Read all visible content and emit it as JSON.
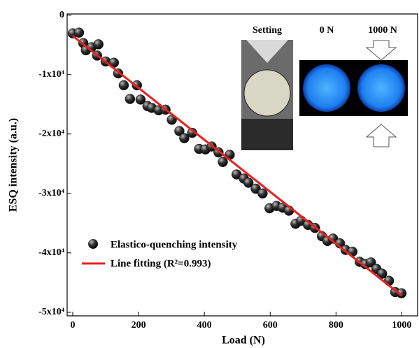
{
  "chart_data": {
    "type": "scatter",
    "x_label": "Load (N)",
    "y_label": "ESQ intensity (a.u.)",
    "xlim": [
      -17,
      1048
    ],
    "ylim": [
      -50600,
      200
    ],
    "xticks": [
      0,
      200,
      400,
      600,
      800,
      1000
    ],
    "yticks": [
      0,
      {
        "value": -10000,
        "label": "-1x10⁴"
      },
      {
        "value": -20000,
        "label": "-2x10⁴"
      },
      {
        "value": -30000,
        "label": "-3x10⁴"
      },
      {
        "value": -40000,
        "label": "-4x10⁴"
      },
      {
        "value": -50000,
        "label": "-5x10⁴"
      }
    ],
    "series": [
      {
        "name": "Elastico-quenching intensity",
        "color": "#111111",
        "x": [
          0,
          19,
          32,
          40,
          57,
          78,
          74,
          100,
          125,
          138,
          155,
          174,
          195,
          206,
          227,
          240,
          261,
          282,
          301,
          324,
          339,
          363,
          384,
          403,
          422,
          443,
          456,
          477,
          498,
          520,
          534,
          556,
          577,
          598,
          619,
          638,
          657,
          677,
          694,
          715,
          736,
          757,
          774,
          791,
          812,
          829,
          850,
          872,
          889,
          906,
          923,
          940,
          961,
          980,
          999
        ],
        "values": [
          -3060,
          -2940,
          -4700,
          -5900,
          -5400,
          -4900,
          -6800,
          -7800,
          -8000,
          -9800,
          -11800,
          -14100,
          -11800,
          -14200,
          -15300,
          -15600,
          -16000,
          -15900,
          -17600,
          -19500,
          -20700,
          -19800,
          -22500,
          -22600,
          -22100,
          -23100,
          -24700,
          -23500,
          -26800,
          -27500,
          -28200,
          -29200,
          -30000,
          -32500,
          -32100,
          -32400,
          -32900,
          -35100,
          -34600,
          -35300,
          -35800,
          -37200,
          -38000,
          -37600,
          -38400,
          -39500,
          -39800,
          -41500,
          -41900,
          -41600,
          -42700,
          -43500,
          -44700,
          -46600,
          -46800
        ]
      },
      {
        "name": "Line fitting (R²=0.993)",
        "color": "#e8201f",
        "line": true,
        "x": [
          0,
          1000
        ],
        "values": [
          -3500,
          -47200
        ]
      }
    ],
    "annotations": [
      "Setting",
      "0 N",
      "1000 N"
    ]
  }
}
